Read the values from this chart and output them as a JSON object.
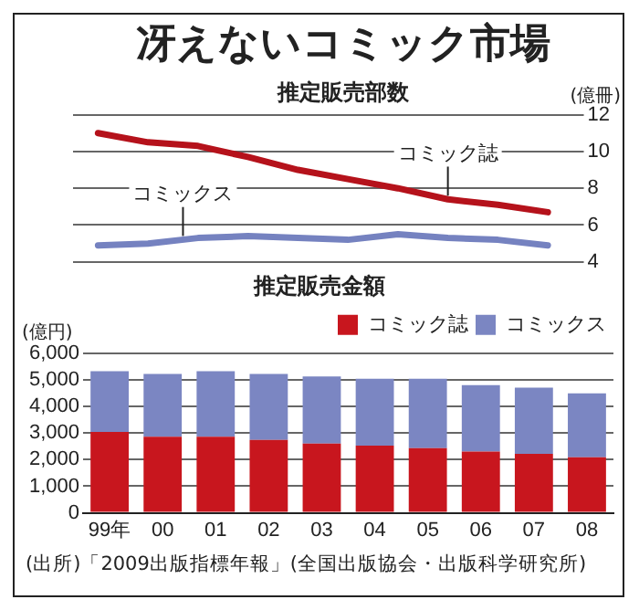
{
  "chart_data": [
    {
      "type": "line",
      "title": "冴えないコミック市場",
      "subtitle": "推定販売部数",
      "ylabel": "(億冊)",
      "categories": [
        null,
        null,
        null,
        null,
        null,
        null,
        null,
        null,
        null,
        null
      ],
      "series": [
        {
          "name": "コミック誌",
          "color": "#b5121b",
          "values": [
            11.0,
            10.5,
            10.3,
            9.7,
            9.0,
            8.5,
            8.0,
            7.4,
            7.1,
            6.7
          ]
        },
        {
          "name": "コミックス",
          "color": "#7582c0",
          "values": [
            4.9,
            5.0,
            5.3,
            5.4,
            5.3,
            5.2,
            5.5,
            5.3,
            5.2,
            4.9
          ]
        }
      ],
      "ylim": [
        4,
        12
      ],
      "yticks": [
        4,
        6,
        8,
        10,
        12
      ],
      "grid": "y",
      "legend": false,
      "tick_labels": "y",
      "marker": "none"
    },
    {
      "type": "bar",
      "title": "推定販売金額",
      "ylabel": "(億円)",
      "categories": [
        "99年",
        "00",
        "01",
        "02",
        "03",
        "04",
        "05",
        "06",
        "07",
        "08"
      ],
      "stacked": true,
      "series": [
        {
          "name": "コミック誌",
          "color": "#c8161e",
          "values": [
            3040,
            2860,
            2860,
            2740,
            2600,
            2530,
            2430,
            2300,
            2220,
            2090
          ]
        },
        {
          "name": "コミックス",
          "color": "#7b86c2",
          "values": [
            2280,
            2360,
            2460,
            2480,
            2530,
            2510,
            2610,
            2500,
            2490,
            2400
          ]
        }
      ],
      "ylim": [
        0,
        6000
      ],
      "yticks": [
        {
          "value": 0,
          "label": "0"
        },
        {
          "value": 1000,
          "label": "1,000"
        },
        {
          "value": 2000,
          "label": "2,000"
        },
        {
          "value": 3000,
          "label": "3,000"
        },
        {
          "value": 4000,
          "label": "4,000"
        },
        {
          "value": 5000,
          "label": "5,000"
        },
        {
          "value": 6000,
          "label": "6,000"
        }
      ],
      "grid": "y",
      "legend": "top right",
      "annotations": [
        "(出所)「2009出版指標年報」(全国出版協会・出版科学研究所)"
      ]
    }
  ]
}
